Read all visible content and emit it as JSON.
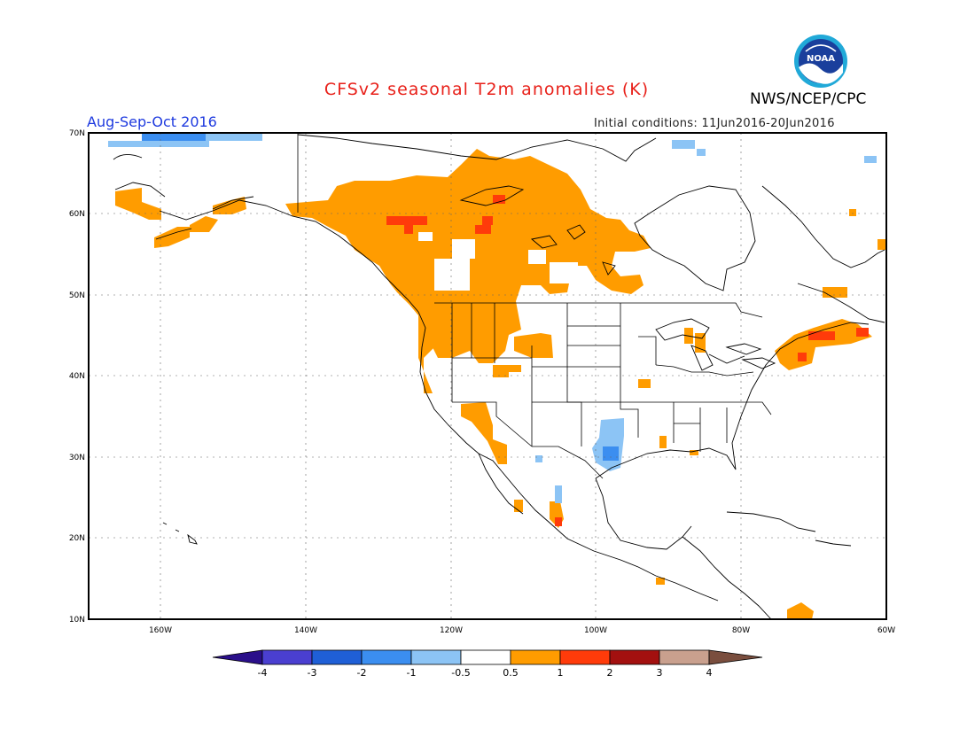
{
  "title": "CFSv2 seasonal T2m anomalies (K)",
  "agency": "NWS/NCEP/CPC",
  "logo_text": "NOAA",
  "period": "Aug-Sep-Oct 2016",
  "initial_conditions": "Initial conditions: 11Jun2016-20Jun2016",
  "lat_labels": [
    "70N",
    "60N",
    "50N",
    "40N",
    "30N",
    "20N",
    "10N"
  ],
  "lon_labels": [
    "160W",
    "140W",
    "120W",
    "100W",
    "80W",
    "60W"
  ],
  "colorbar": {
    "ticks": [
      "-4",
      "-3",
      "-2",
      "-1",
      "-0.5",
      "0.5",
      "1",
      "2",
      "3",
      "4"
    ],
    "colors": [
      "#2a0f8a",
      "#4a3fd0",
      "#1f5fd6",
      "#3b8ef0",
      "#8cc4f5",
      "#ffffff",
      "#ff9c00",
      "#ff3b0a",
      "#a3100f",
      "#c9a08e",
      "#7a4e3e"
    ]
  },
  "legend_classes": {
    "warm_05_1": "#ff9c00",
    "warm_1_2": "#ff3b0a",
    "cool_05_1": "#8cc4f5",
    "cool_1_2": "#3b8ef0"
  }
}
